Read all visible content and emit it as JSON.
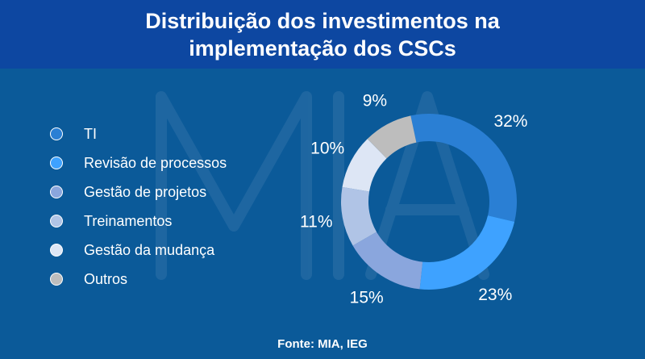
{
  "header": {
    "title": "Distribuição dos investimentos na implementação dos CSCs"
  },
  "source": "Fonte: MIA, IEG",
  "watermark": "MIA",
  "chart_data": {
    "type": "pie",
    "donut": true,
    "legend_position": "left",
    "categories": [
      "TI",
      "Revisão de processos",
      "Gestão de projetos",
      "Treinamentos",
      "Gestão da mudança",
      "Outros"
    ],
    "values": [
      32,
      23,
      15,
      11,
      10,
      9
    ],
    "labels": [
      "32%",
      "23%",
      "15%",
      "11%",
      "10%",
      "9%"
    ],
    "colors": [
      "#2a7fd4",
      "#3ea2ff",
      "#8aa6dd",
      "#b0c4e6",
      "#dde6f5",
      "#bdbdbd"
    ]
  }
}
